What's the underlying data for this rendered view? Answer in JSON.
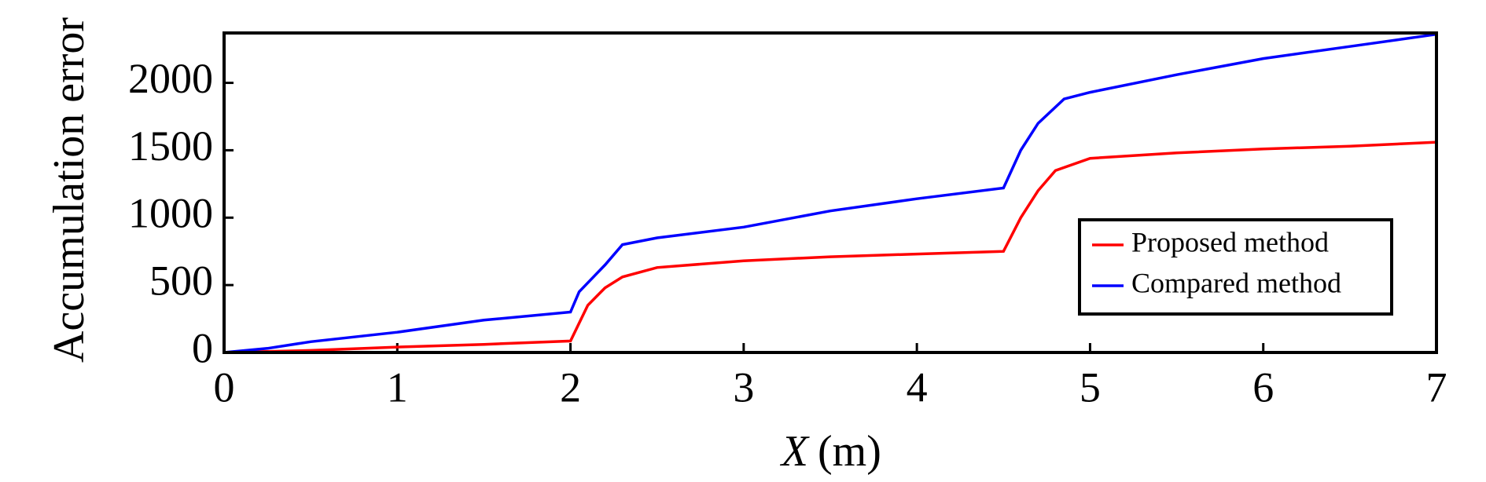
{
  "chart_data": {
    "type": "line",
    "xlabel": {
      "italic": "X",
      "unit": "(m)"
    },
    "ylabel": "Accumulation error",
    "xlim": [
      0,
      7
    ],
    "xticks": [
      0,
      1,
      2,
      3,
      4,
      5,
      6,
      7
    ],
    "ylim": [
      0,
      2370
    ],
    "yticks": [
      0,
      500,
      1000,
      1500,
      2000
    ],
    "legend": "lower right",
    "series": [
      {
        "name": "Proposed method",
        "color": "#ff0000",
        "x": [
          0,
          0.5,
          1,
          1.5,
          2,
          2.1,
          2.2,
          2.3,
          2.5,
          3,
          3.5,
          4,
          4.5,
          4.6,
          4.7,
          4.8,
          5,
          5.5,
          6,
          6.5,
          7
        ],
        "values": [
          0,
          15,
          40,
          60,
          85,
          350,
          480,
          560,
          630,
          680,
          710,
          730,
          750,
          1000,
          1200,
          1350,
          1440,
          1480,
          1510,
          1530,
          1560
        ]
      },
      {
        "name": "Compared method",
        "color": "#0000ff",
        "x": [
          0,
          0.25,
          0.5,
          1,
          1.5,
          2,
          2.05,
          2.2,
          2.3,
          2.5,
          3,
          3.5,
          4,
          4.5,
          4.6,
          4.7,
          4.85,
          5,
          5.5,
          6,
          6.5,
          7
        ],
        "values": [
          0,
          30,
          80,
          150,
          240,
          300,
          450,
          650,
          800,
          850,
          930,
          1050,
          1140,
          1220,
          1500,
          1700,
          1880,
          1930,
          2060,
          2180,
          2270,
          2360
        ]
      }
    ]
  }
}
